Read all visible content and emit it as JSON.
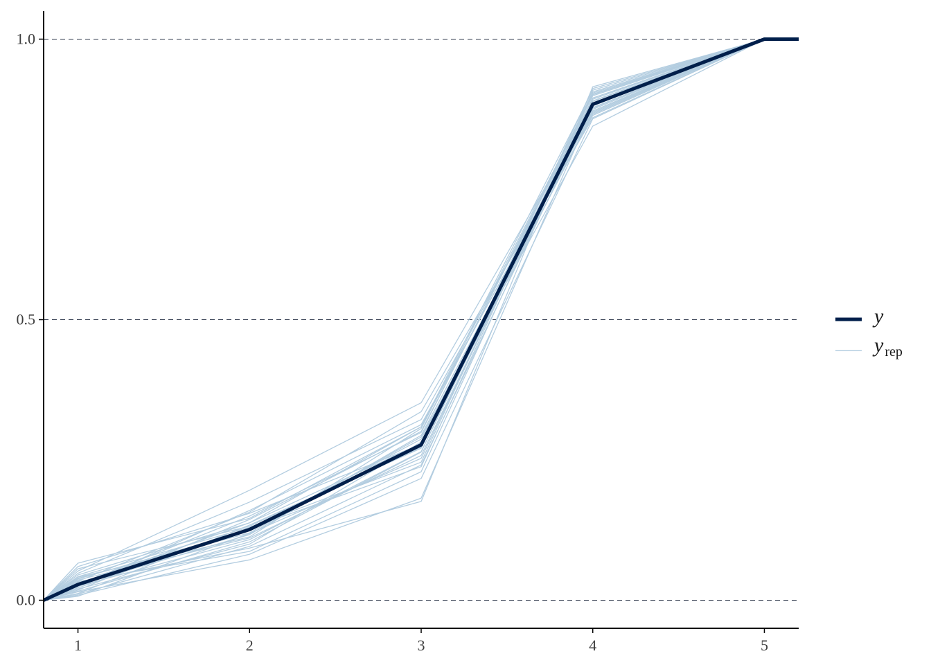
{
  "chart_data": {
    "type": "line",
    "title": "",
    "xlabel": "",
    "ylabel": "",
    "xlim": [
      0.8,
      5.2
    ],
    "ylim": [
      -0.05,
      1.05
    ],
    "x": [
      0.8,
      1,
      2,
      3,
      4,
      5,
      5.2
    ],
    "x_ticks": [
      "1",
      "2",
      "3",
      "4",
      "5"
    ],
    "y_ticks": [
      "0.0",
      "0.5",
      "1.0"
    ],
    "y_tick_values": [
      0.0,
      0.5,
      1.0
    ],
    "grid": "horizontal dashed at y ticks",
    "legend_position": "right",
    "colors": {
      "y": "#011f4b",
      "yrep": "#b3cde0",
      "grid": "#2a3447",
      "axis": "#000000"
    },
    "series": [
      {
        "name": "y",
        "label": "y",
        "values": [
          0.0,
          0.028,
          0.126,
          0.277,
          0.884,
          1.0,
          1.0
        ]
      },
      {
        "name": "yrep",
        "label": "y",
        "subscript": "rep",
        "draws": [
          [
            0.0,
            0.066,
            0.146,
            0.309,
            0.909,
            1.0,
            1.0
          ],
          [
            0.0,
            0.06,
            0.155,
            0.278,
            0.895,
            1.0,
            1.0
          ],
          [
            0.0,
            0.045,
            0.138,
            0.309,
            0.87,
            1.0,
            1.0
          ],
          [
            0.0,
            0.042,
            0.13,
            0.246,
            0.904,
            1.0,
            1.0
          ],
          [
            0.0,
            0.039,
            0.12,
            0.291,
            0.845,
            1.0,
            1.0
          ],
          [
            0.0,
            0.036,
            0.111,
            0.258,
            0.885,
            1.0,
            1.0
          ],
          [
            0.0,
            0.034,
            0.157,
            0.336,
            0.86,
            1.0,
            1.0
          ],
          [
            0.0,
            0.031,
            0.093,
            0.176,
            0.915,
            1.0,
            1.0
          ],
          [
            0.0,
            0.029,
            0.138,
            0.279,
            0.878,
            1.0,
            1.0
          ],
          [
            0.0,
            0.027,
            0.117,
            0.294,
            0.872,
            1.0,
            1.0
          ],
          [
            0.0,
            0.025,
            0.108,
            0.265,
            0.89,
            1.0,
            1.0
          ],
          [
            0.0,
            0.022,
            0.128,
            0.238,
            0.902,
            1.0,
            1.0
          ],
          [
            0.0,
            0.02,
            0.1,
            0.282,
            0.866,
            1.0,
            1.0
          ],
          [
            0.0,
            0.018,
            0.144,
            0.301,
            0.893,
            1.0,
            1.0
          ],
          [
            0.0,
            0.015,
            0.072,
            0.182,
            0.877,
            1.0,
            1.0
          ],
          [
            0.0,
            0.012,
            0.134,
            0.271,
            0.906,
            1.0,
            1.0
          ],
          [
            0.0,
            0.009,
            0.082,
            0.217,
            0.858,
            1.0,
            1.0
          ],
          [
            0.0,
            0.007,
            0.119,
            0.253,
            0.889,
            1.0,
            1.0
          ],
          [
            0.0,
            0.048,
            0.175,
            0.322,
            0.872,
            1.0,
            1.0
          ],
          [
            0.0,
            0.033,
            0.087,
            0.229,
            0.895,
            1.0,
            1.0
          ],
          [
            0.0,
            0.024,
            0.16,
            0.313,
            0.864,
            1.0,
            1.0
          ],
          [
            0.0,
            0.052,
            0.196,
            0.352,
            0.883,
            1.0,
            1.0
          ],
          [
            0.0,
            0.016,
            0.104,
            0.264,
            0.912,
            1.0,
            1.0
          ],
          [
            0.0,
            0.038,
            0.125,
            0.287,
            0.875,
            1.0,
            1.0
          ],
          [
            0.0,
            0.028,
            0.15,
            0.299,
            0.899,
            1.0,
            1.0
          ],
          [
            0.0,
            0.011,
            0.096,
            0.241,
            0.881,
            1.0,
            1.0
          ],
          [
            0.0,
            0.056,
            0.132,
            0.273,
            0.868,
            1.0,
            1.0
          ],
          [
            0.0,
            0.041,
            0.113,
            0.306,
            0.901,
            1.0,
            1.0
          ]
        ]
      }
    ]
  }
}
